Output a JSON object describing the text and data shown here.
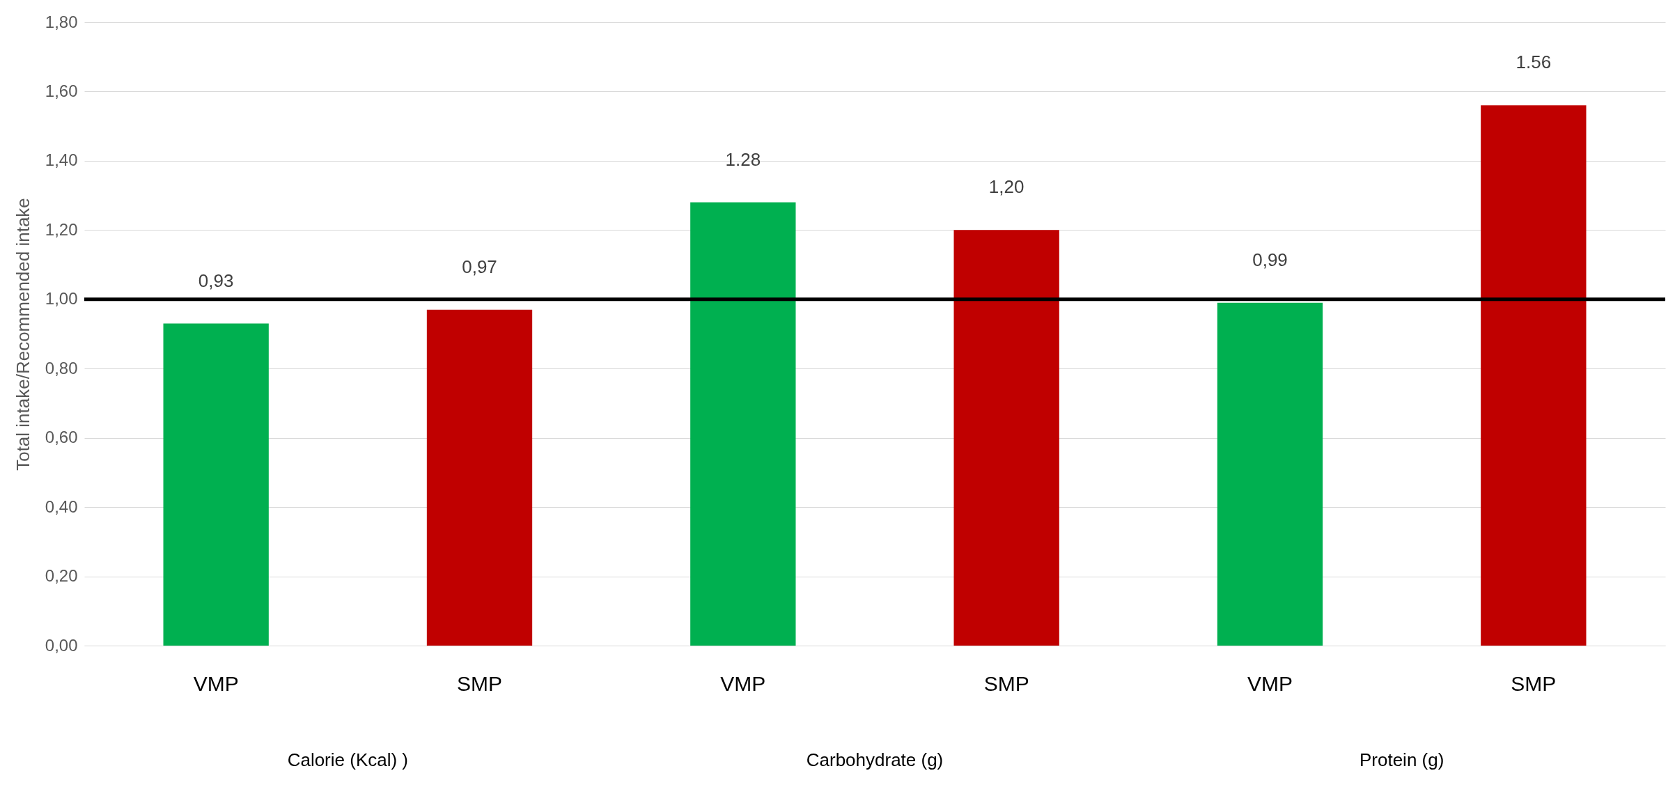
{
  "chart_data": {
    "type": "bar",
    "ylabel": "Total intake/Recommended intake",
    "categories": [
      "VMP",
      "SMP",
      "VMP",
      "SMP",
      "VMP",
      "SMP"
    ],
    "values": [
      0.93,
      0.97,
      1.28,
      1.2,
      0.99,
      1.56
    ],
    "colors": [
      "#00b050",
      "#c00000",
      "#00b050",
      "#c00000",
      "#00b050",
      "#c00000"
    ],
    "value_labels": [
      "0,93",
      "0,97",
      "1.28",
      "1,20",
      "0,99",
      "1.56"
    ],
    "ylim": [
      0,
      1.8
    ],
    "yticks": [
      {
        "value": 0,
        "label": "0,00"
      },
      {
        "value": 0.2,
        "label": "0,20"
      },
      {
        "value": 0.4,
        "label": "0,40"
      },
      {
        "value": 0.6,
        "label": "0,60"
      },
      {
        "value": 0.8,
        "label": "0,80"
      },
      {
        "value": 1,
        "label": "1,00"
      },
      {
        "value": 1.2,
        "label": "1,20"
      },
      {
        "value": 1.4,
        "label": "1,40"
      },
      {
        "value": 1.6,
        "label": "1,60"
      },
      {
        "value": 1.8,
        "label": "1,80"
      }
    ],
    "grid": "y",
    "ref_lines": [
      {
        "axis": "y",
        "value": 1,
        "color": "#000000"
      }
    ],
    "annotations": [
      "Calorie (Kcal)  )",
      "Carbohydrate (g)",
      "Protein (g)"
    ]
  }
}
